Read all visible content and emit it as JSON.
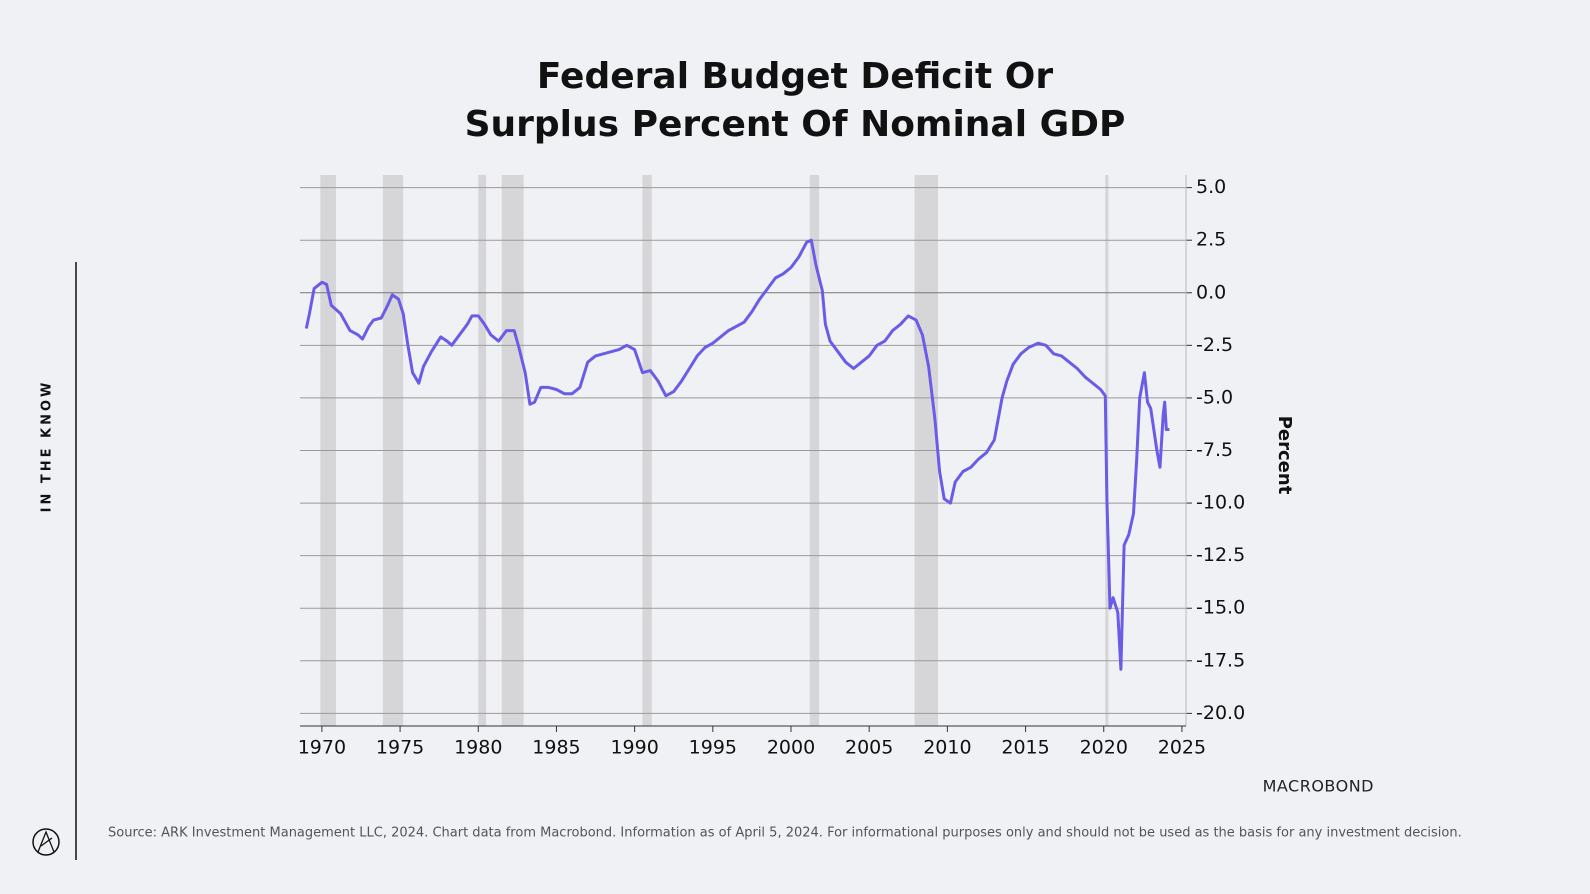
{
  "chart_data": {
    "type": "line",
    "title": [
      "Federal Budget Deficit Or",
      "Surplus Percent Of Nominal GDP"
    ],
    "y_label": "Percent",
    "side_label": "IN THE KNOW",
    "logo": "MACROBOND",
    "source": "Source: ARK Investment Management LLC, 2024. Chart data from Macrobond. Information as of April 5, 2024. For informational purposes only and should not be used as the basis for any investment decision.",
    "color": "#6b5ce7",
    "recession_color": "#d6d6d8",
    "grid": true,
    "xlim": [
      1968.6,
      2025.26
    ],
    "xticks": [
      1970,
      1975,
      1980,
      1985,
      1990,
      1995,
      2000,
      2005,
      2010,
      2015,
      2020,
      2025
    ],
    "ylim": [
      -20.6,
      5.6
    ],
    "yticks": [
      {
        "value": 5,
        "label": "5.0"
      },
      2.5,
      {
        "value": 0,
        "label": "0.0"
      },
      -2.5,
      {
        "value": -5,
        "label": "-5.0"
      },
      -7.5,
      {
        "value": -10,
        "label": "-10.0"
      },
      -12.5,
      {
        "value": -15,
        "label": "-15.0"
      },
      -17.5,
      {
        "value": -20,
        "label": "-20.0"
      }
    ],
    "recessions": [
      [
        1969.9,
        1970.9
      ],
      [
        1973.9,
        1975.2
      ],
      [
        1980.0,
        1980.5
      ],
      [
        1981.5,
        1982.9
      ],
      [
        1990.5,
        1991.1
      ],
      [
        2001.2,
        2001.8
      ],
      [
        2007.9,
        2009.4
      ],
      [
        2020.1,
        2020.3
      ]
    ],
    "x": [
      1969.0,
      1969.2,
      1969.5,
      1970.0,
      1970.3,
      1970.6,
      1971.2,
      1971.8,
      1972.3,
      1972.6,
      1973.0,
      1973.3,
      1973.8,
      1974.2,
      1974.5,
      1974.9,
      1975.2,
      1975.5,
      1975.8,
      1976.2,
      1976.5,
      1977.0,
      1977.6,
      1978.0,
      1978.3,
      1978.8,
      1979.3,
      1979.6,
      1980.0,
      1980.4,
      1980.8,
      1981.3,
      1981.8,
      1982.3,
      1982.6,
      1983.0,
      1983.3,
      1983.6,
      1984.0,
      1984.5,
      1985.0,
      1985.5,
      1986.0,
      1986.5,
      1987.0,
      1987.5,
      1988.0,
      1988.5,
      1989.0,
      1989.5,
      1990.0,
      1990.5,
      1991.0,
      1991.5,
      1992.0,
      1992.5,
      1993.0,
      1993.5,
      1994.0,
      1994.5,
      1995.0,
      1995.5,
      1996.0,
      1996.5,
      1997.0,
      1997.5,
      1998.0,
      1998.5,
      1999.0,
      1999.5,
      2000.0,
      2000.5,
      2001.0,
      2001.3,
      2001.6,
      2002.0,
      2002.2,
      2002.5,
      2003.0,
      2003.5,
      2004.0,
      2004.5,
      2005.0,
      2005.5,
      2006.0,
      2006.5,
      2007.0,
      2007.5,
      2008.0,
      2008.4,
      2008.8,
      2009.2,
      2009.5,
      2009.8,
      2010.2,
      2010.5,
      2011.0,
      2011.5,
      2012.0,
      2012.5,
      2013.0,
      2013.5,
      2013.8,
      2014.2,
      2014.7,
      2015.2,
      2015.8,
      2016.3,
      2016.8,
      2017.3,
      2017.8,
      2018.3,
      2018.8,
      2019.3,
      2019.8,
      2020.1,
      2020.2,
      2020.4,
      2020.6,
      2020.9,
      2021.1,
      2021.3,
      2021.6,
      2021.9,
      2022.1,
      2022.3,
      2022.6,
      2022.8,
      2023.0,
      2023.4,
      2023.6,
      2023.8,
      2023.9,
      2024.0,
      2024.2
    ],
    "values": [
      -1.7,
      -1.0,
      0.2,
      0.5,
      0.4,
      -0.6,
      -1.0,
      -1.8,
      -2.0,
      -2.2,
      -1.6,
      -1.3,
      -1.2,
      -0.6,
      -0.1,
      -0.3,
      -1.0,
      -2.5,
      -3.8,
      -4.3,
      -3.5,
      -2.8,
      -2.1,
      -2.3,
      -2.5,
      -2.0,
      -1.5,
      -1.1,
      -1.1,
      -1.5,
      -2.0,
      -2.3,
      -1.8,
      -1.8,
      -2.6,
      -3.8,
      -5.3,
      -5.2,
      -4.5,
      -4.5,
      -4.6,
      -4.8,
      -4.8,
      -4.5,
      -3.3,
      -3.0,
      -2.9,
      -2.8,
      -2.7,
      -2.5,
      -2.7,
      -3.8,
      -3.7,
      -4.2,
      -4.9,
      -4.7,
      -4.2,
      -3.6,
      -3.0,
      -2.6,
      -2.4,
      -2.1,
      -1.8,
      -1.6,
      -1.4,
      -0.9,
      -0.3,
      0.2,
      0.7,
      0.9,
      1.2,
      1.7,
      2.4,
      2.5,
      1.3,
      0.1,
      -1.5,
      -2.3,
      -2.8,
      -3.3,
      -3.6,
      -3.3,
      -3.0,
      -2.5,
      -2.3,
      -1.8,
      -1.5,
      -1.1,
      -1.3,
      -2.0,
      -3.5,
      -6.0,
      -8.5,
      -9.8,
      -10.0,
      -9.0,
      -8.5,
      -8.3,
      -7.9,
      -7.6,
      -7.0,
      -5.0,
      -4.2,
      -3.4,
      -2.9,
      -2.6,
      -2.4,
      -2.5,
      -2.9,
      -3.0,
      -3.3,
      -3.6,
      -4.0,
      -4.3,
      -4.6,
      -4.9,
      -9.8,
      -15.0,
      -14.5,
      -15.2,
      -17.9,
      -12.0,
      -11.5,
      -10.5,
      -8.0,
      -5.0,
      -3.8,
      -5.2,
      -5.5,
      -7.5,
      -8.3,
      -5.8,
      -5.2,
      -6.5,
      -6.5
    ]
  }
}
